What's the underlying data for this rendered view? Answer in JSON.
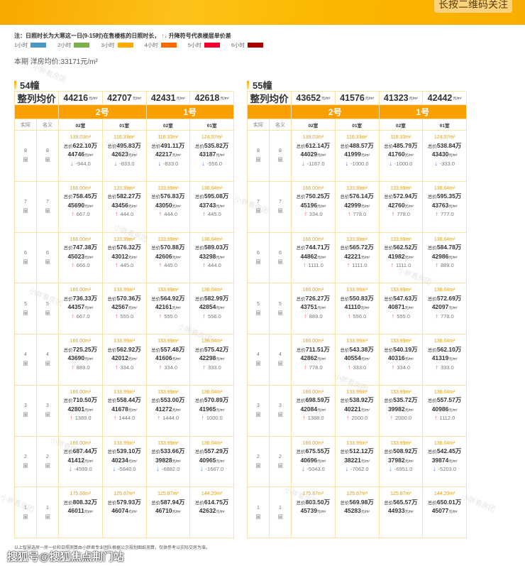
{
  "banner": {
    "qr_label": "长按二维码关注"
  },
  "note": {
    "text": "注：日照时长为大寒这一日(9-15时)在售楼栋的日照时长，",
    "up_icon": "↑",
    "down_icon": "↓",
    "suffix": "升降符号代表楼层单价差"
  },
  "legend": [
    {
      "label": "1小时",
      "color": "#4a98c4"
    },
    {
      "label": "2小时",
      "color": "#7bb04a"
    },
    {
      "label": "3小时",
      "color": "#fbaa00"
    },
    {
      "label": "4小时",
      "color": "#fd6a00"
    },
    {
      "label": "5小时",
      "color": "#f5002e"
    },
    {
      "label": "6小时",
      "color": "#a80000"
    }
  ],
  "avg_price": "本期 洋房均价:33171元/m²",
  "labels": {
    "col_avg": "整列均价",
    "unit_suffix": "元/m²",
    "actual": "实际",
    "nominal": "名义",
    "floor_suffix": "层",
    "total_prefix": "总价",
    "wan": "万",
    "area_suffix": "m²"
  },
  "buildings": [
    {
      "name": "54幢",
      "col_avgs": [
        "44216",
        "42707",
        "42431",
        "42618"
      ],
      "groups": [
        "2号",
        "1号"
      ],
      "rooms": [
        "02室",
        "01室",
        "02室",
        "01室"
      ],
      "floors": [
        {
          "floor": "8",
          "units": [
            {
              "area": "139.03",
              "total": "622.10",
              "price": "44746",
              "diff": "-944.0",
              "dir": "down"
            },
            {
              "area": "116.33",
              "total": "495.83",
              "price": "42623",
              "diff": "-833.0",
              "dir": "down"
            },
            {
              "area": "116.33",
              "total": "491.11",
              "price": "42217",
              "diff": "-833.0",
              "dir": "down"
            },
            {
              "area": "124.07",
              "total": "535.82",
              "price": "43187",
              "diff": "-556.0",
              "dir": "down"
            }
          ]
        },
        {
          "floor": "7",
          "units": [
            {
              "area": "166.00",
              "total": "758.45",
              "price": "45690",
              "diff": "667.0",
              "dir": "up"
            },
            {
              "area": "133.99",
              "total": "582.27",
              "price": "43456",
              "diff": "444.0",
              "dir": "up"
            },
            {
              "area": "133.99",
              "total": "576.83",
              "price": "43050",
              "diff": "444.0",
              "dir": "up"
            },
            {
              "area": "136.04",
              "total": "595.08",
              "price": "43743",
              "diff": "445.0",
              "dir": "up"
            }
          ]
        },
        {
          "floor": "6",
          "units": [
            {
              "area": "166.00",
              "total": "747.38",
              "price": "45023",
              "diff": "666.0",
              "dir": "up"
            },
            {
              "area": "133.99",
              "total": "576.32",
              "price": "43012",
              "diff": "445.0",
              "dir": "up"
            },
            {
              "area": "133.99",
              "total": "570.88",
              "price": "42606",
              "diff": "445.0",
              "dir": "up"
            },
            {
              "area": "136.04",
              "total": "589.03",
              "price": "43298",
              "diff": "444.0",
              "dir": "up"
            }
          ]
        },
        {
          "floor": "5",
          "units": [
            {
              "area": "166.00",
              "total": "736.33",
              "price": "44357",
              "diff": "667.0",
              "dir": "up"
            },
            {
              "area": "133.99",
              "total": "570.36",
              "price": "42567",
              "diff": "555.0",
              "dir": "up"
            },
            {
              "area": "133.99",
              "total": "564.92",
              "price": "42161",
              "diff": "555.0",
              "dir": "up"
            },
            {
              "area": "136.04",
              "total": "582.99",
              "price": "42854",
              "diff": "556.0",
              "dir": "up"
            }
          ]
        },
        {
          "floor": "4",
          "units": [
            {
              "area": "166.00",
              "total": "725.25",
              "price": "43690",
              "diff": "889.0",
              "dir": "up"
            },
            {
              "area": "133.99",
              "total": "562.92",
              "price": "42012",
              "diff": "334.0",
              "dir": "up"
            },
            {
              "area": "133.99",
              "total": "557.48",
              "price": "41606",
              "diff": "334.0",
              "dir": "up"
            },
            {
              "area": "136.04",
              "total": "575.42",
              "price": "42298",
              "diff": "333.0",
              "dir": "up"
            }
          ]
        },
        {
          "floor": "3",
          "units": [
            {
              "area": "166.00",
              "total": "710.50",
              "price": "42801",
              "diff": "1389.0",
              "dir": "up"
            },
            {
              "area": "133.99",
              "total": "558.44",
              "price": "41678",
              "diff": "1444.0",
              "dir": "up"
            },
            {
              "area": "133.99",
              "total": "553.00",
              "price": "41272",
              "diff": "1444.0",
              "dir": "up"
            },
            {
              "area": "136.04",
              "total": "570.89",
              "price": "41965",
              "diff": "1000.0",
              "dir": "up"
            }
          ]
        },
        {
          "floor": "2",
          "units": [
            {
              "area": "166.00",
              "total": "687.44",
              "price": "41412",
              "diff": "-4599.0",
              "dir": "down"
            },
            {
              "area": "133.99",
              "total": "539.10",
              "price": "40234",
              "diff": "-5840.0",
              "dir": "down"
            },
            {
              "area": "133.99",
              "total": "533.66",
              "price": "39828",
              "diff": "-6882.0",
              "dir": "down"
            },
            {
              "area": "136.04",
              "total": "557.29",
              "price": "40965",
              "diff": "-1667.0",
              "dir": "down"
            }
          ]
        },
        {
          "floor": "1",
          "units": [
            {
              "area": "175.68",
              "total": "808.32",
              "price": "46011"
            },
            {
              "area": "125.87",
              "total": "579.93",
              "price": "46074"
            },
            {
              "area": "125.87",
              "total": "587.94",
              "price": "46710"
            },
            {
              "area": "144.20",
              "total": "614.75",
              "price": "42632"
            }
          ]
        }
      ]
    },
    {
      "name": "55幢",
      "col_avgs": [
        "43652",
        "41576",
        "41323",
        "42442"
      ],
      "groups": [
        "2号",
        "1号"
      ],
      "rooms": [
        "02室",
        "01室",
        "02室",
        "01室"
      ],
      "floors": [
        {
          "floor": "8",
          "units": [
            {
              "area": "139.03",
              "total": "612.14",
              "price": "44029",
              "diff": "-1167.0",
              "dir": "down"
            },
            {
              "area": "116.33",
              "total": "488.57",
              "price": "41999",
              "diff": "-1000.0",
              "dir": "down"
            },
            {
              "area": "116.33",
              "total": "485.79",
              "price": "41760",
              "diff": "-1000.0",
              "dir": "down"
            },
            {
              "area": "124.07",
              "total": "538.84",
              "price": "43430",
              "diff": "-333.0",
              "dir": "down"
            }
          ]
        },
        {
          "floor": "7",
          "units": [
            {
              "area": "166.00",
              "total": "750.25",
              "price": "45196",
              "diff": "334.0",
              "dir": "up"
            },
            {
              "area": "133.99",
              "total": "576.14",
              "price": "42999",
              "diff": "778.0",
              "dir": "up"
            },
            {
              "area": "133.99",
              "total": "572.94",
              "price": "42760",
              "diff": "778.0",
              "dir": "up"
            },
            {
              "area": "136.04",
              "total": "595.35",
              "price": "43763",
              "diff": "777.0",
              "dir": "up"
            }
          ]
        },
        {
          "floor": "6",
          "units": [
            {
              "area": "166.00",
              "total": "744.71",
              "price": "44862",
              "diff": "1111.0",
              "dir": "up"
            },
            {
              "area": "133.99",
              "total": "565.72",
              "price": "42221",
              "diff": "1111.0",
              "dir": "up"
            },
            {
              "area": "133.99",
              "total": "562.52",
              "price": "41982",
              "diff": "1111.0",
              "dir": "up"
            },
            {
              "area": "136.04",
              "total": "584.78",
              "price": "42986",
              "diff": "889.0",
              "dir": "up"
            }
          ]
        },
        {
          "floor": "5",
          "units": [
            {
              "area": "166.00",
              "total": "726.27",
              "price": "43751",
              "diff": "889.0",
              "dir": "up"
            },
            {
              "area": "133.99",
              "total": "550.83",
              "price": "41110",
              "diff": "556.0",
              "dir": "up"
            },
            {
              "area": "133.99",
              "total": "547.63",
              "price": "40871",
              "diff": "555.0",
              "dir": "up"
            },
            {
              "area": "136.04",
              "total": "572.69",
              "price": "42097",
              "diff": "778.0",
              "dir": "up"
            }
          ]
        },
        {
          "floor": "4",
          "units": [
            {
              "area": "166.00",
              "total": "711.51",
              "price": "42862",
              "diff": "778.0",
              "dir": "up"
            },
            {
              "area": "133.99",
              "total": "543.38",
              "price": "40554",
              "diff": "333.0",
              "dir": "up"
            },
            {
              "area": "133.99",
              "total": "540.19",
              "price": "40316",
              "diff": "334.0",
              "dir": "up"
            },
            {
              "area": "136.04",
              "total": "562.10",
              "price": "41319",
              "diff": "333.0",
              "dir": "up"
            }
          ]
        },
        {
          "floor": "3",
          "units": [
            {
              "area": "166.00",
              "total": "698.59",
              "price": "42084",
              "diff": "1388.0",
              "dir": "up"
            },
            {
              "area": "133.99",
              "total": "538.92",
              "price": "40221",
              "diff": "2000.0",
              "dir": "up"
            },
            {
              "area": "133.99",
              "total": "535.72",
              "price": "39982",
              "diff": "2000.0",
              "dir": "up"
            },
            {
              "area": "136.04",
              "total": "557.57",
              "price": "40986",
              "diff": "1112.0",
              "dir": "up"
            }
          ]
        },
        {
          "floor": "2",
          "units": [
            {
              "area": "166.00",
              "total": "675.55",
              "price": "40696",
              "diff": "-5043.0",
              "dir": "down"
            },
            {
              "area": "133.99",
              "total": "512.12",
              "price": "38221",
              "diff": "-7062.0",
              "dir": "down"
            },
            {
              "area": "133.99",
              "total": "508.92",
              "price": "37982",
              "diff": "-6951.0",
              "dir": "down"
            },
            {
              "area": "136.04",
              "total": "542.45",
              "price": "39874",
              "diff": "-5203.0",
              "dir": "down"
            }
          ]
        },
        {
          "floor": "1",
          "units": [
            {
              "area": "175.67",
              "total": "803.50",
              "price": "45739"
            },
            {
              "area": "125.87",
              "total": "569.98",
              "price": "45283"
            },
            {
              "area": "125.87",
              "total": "565.57",
              "price": "44933"
            },
            {
              "area": "144.20",
              "total": "650.01",
              "price": "45077"
            }
          ]
        }
      ]
    }
  ],
  "watermark": "小胖看房团",
  "footnote": "以上智慧选房一房一价和日照测算由小胖君专业团队根据公示规划图纸测算，仅供参考以实际交房为准。",
  "source": "搜狐号@搜狐焦点荆门站"
}
